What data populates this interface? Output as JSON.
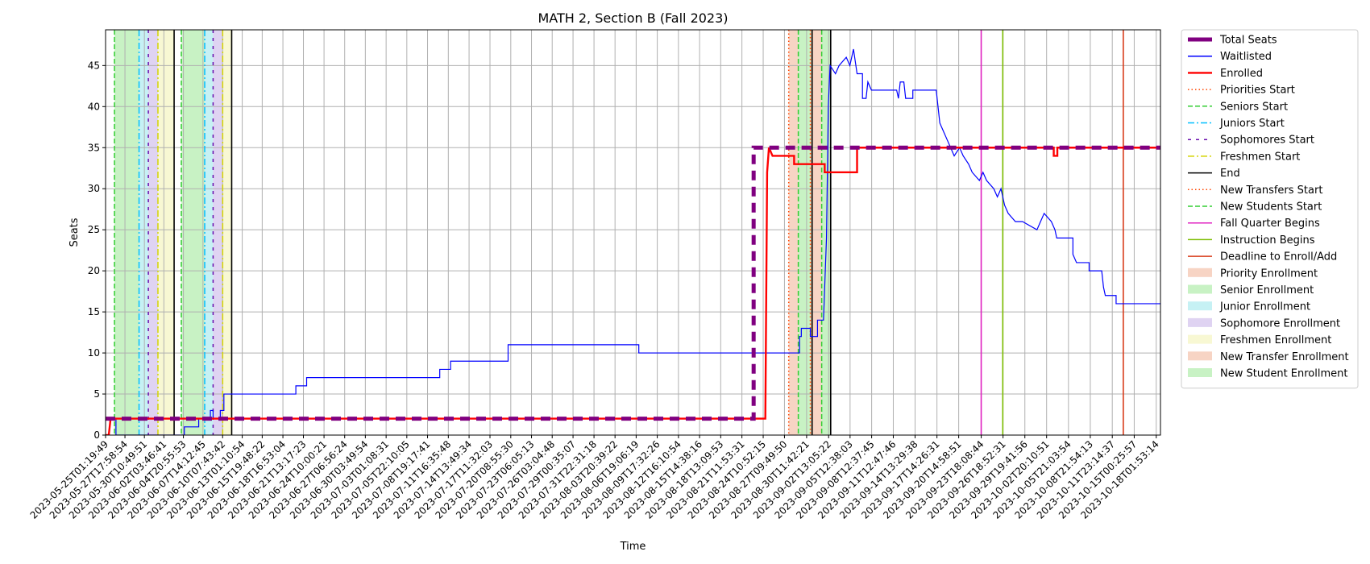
{
  "chart_data": {
    "type": "line",
    "title": "MATH 2, Section B (Fall 2023)",
    "xlabel": "Time",
    "ylabel": "Seats",
    "ylim": [
      0,
      49.35
    ],
    "yticks": [
      0,
      5,
      10,
      15,
      20,
      25,
      30,
      35,
      40,
      45
    ],
    "xlim": [
      "2023-05-25T01:19:49",
      "2023-10-18T16:00:00"
    ],
    "x_tick_labels": [
      "2023-05-25T01:19:49",
      "2023-05-27T17:58:54",
      "2023-05-30T10:49:51",
      "2023-06-02T03:46:41",
      "2023-06-04T20:55:53",
      "2023-06-07T14:12:45",
      "2023-06-10T07:43:42",
      "2023-06-13T01:10:54",
      "2023-06-15T19:48:22",
      "2023-06-18T16:53:04",
      "2023-06-21T13:17:23",
      "2023-06-24T10:00:21",
      "2023-06-27T06:56:24",
      "2023-06-30T03:49:54",
      "2023-07-03T01:08:31",
      "2023-07-05T22:10:05",
      "2023-07-08T19:17:41",
      "2023-07-11T16:35:48",
      "2023-07-14T13:49:34",
      "2023-07-17T11:32:03",
      "2023-07-20T08:55:30",
      "2023-07-23T06:05:13",
      "2023-07-26T03:04:48",
      "2023-07-29T00:35:07",
      "2023-07-31T22:31:18",
      "2023-08-03T20:39:22",
      "2023-08-06T19:06:19",
      "2023-08-09T17:32:26",
      "2023-08-12T16:10:54",
      "2023-08-15T14:38:16",
      "2023-08-18T13:09:53",
      "2023-08-21T11:53:31",
      "2023-08-24T10:52:15",
      "2023-08-27T09:49:50",
      "2023-08-30T11:42:21",
      "2023-09-02T13:05:22",
      "2023-09-05T12:38:03",
      "2023-09-08T12:37:45",
      "2023-09-11T12:47:46",
      "2023-09-14T13:29:38",
      "2023-09-17T14:26:31",
      "2023-09-20T14:58:51",
      "2023-09-23T18:08:44",
      "2023-09-26T18:52:31",
      "2023-09-29T19:41:56",
      "2023-10-02T20:10:51",
      "2023-10-05T21:03:54",
      "2023-10-08T21:54:13",
      "2023-10-11T23:14:37",
      "2023-10-15T00:25:57",
      "2023-10-18T01:53:14"
    ],
    "grid": true,
    "legend_placement": "outside-upper-right",
    "series": [
      {
        "name": "Total Seats",
        "color": "#800080",
        "style": "dashed-thick",
        "points": [
          [
            "2023-05-25T01:19:49",
            2
          ],
          [
            "2023-08-23T03:00:00",
            2
          ],
          [
            "2023-08-23T03:00:00",
            35
          ],
          [
            "2023-10-18T16:00:00",
            35
          ]
        ]
      },
      {
        "name": "Waitlisted",
        "color": "#0000ff",
        "style": "solid",
        "points": [
          [
            "2023-05-25T01:19:49",
            2
          ],
          [
            "2023-05-26T12:00:00",
            2
          ],
          [
            "2023-05-26T12:00:00",
            0
          ],
          [
            "2023-06-05T00:00:00",
            0
          ],
          [
            "2023-06-05T00:00:00",
            1
          ],
          [
            "2023-06-07T00:00:00",
            1
          ],
          [
            "2023-06-07T00:00:00",
            2
          ],
          [
            "2023-06-08T15:00:00",
            2
          ],
          [
            "2023-06-08T15:00:00",
            3
          ],
          [
            "2023-06-09T00:00:00",
            3
          ],
          [
            "2023-06-09T00:00:00",
            2
          ],
          [
            "2023-06-10T00:00:00",
            2
          ],
          [
            "2023-06-10T00:00:00",
            3
          ],
          [
            "2023-06-10T12:00:00",
            3
          ],
          [
            "2023-06-10T12:00:00",
            5
          ],
          [
            "2023-06-20T12:00:00",
            5
          ],
          [
            "2023-06-20T12:00:00",
            6
          ],
          [
            "2023-06-22T00:00:00",
            6
          ],
          [
            "2023-06-22T00:00:00",
            7
          ],
          [
            "2023-07-10T12:00:00",
            7
          ],
          [
            "2023-07-10T12:00:00",
            8
          ],
          [
            "2023-07-12T00:00:00",
            8
          ],
          [
            "2023-07-12T00:00:00",
            9
          ],
          [
            "2023-07-20T00:00:00",
            9
          ],
          [
            "2023-07-20T00:00:00",
            11
          ],
          [
            "2023-08-07T04:00:00",
            11
          ],
          [
            "2023-08-07T04:00:00",
            10
          ],
          [
            "2023-08-29T12:00:00",
            10
          ],
          [
            "2023-08-29T12:00:00",
            12
          ],
          [
            "2023-08-29T18:00:00",
            12
          ],
          [
            "2023-08-29T18:00:00",
            13
          ],
          [
            "2023-08-31T00:00:00",
            13
          ],
          [
            "2023-08-31T00:00:00",
            12
          ],
          [
            "2023-09-01T00:00:00",
            12
          ],
          [
            "2023-09-01T00:00:00",
            14
          ],
          [
            "2023-09-01T20:00:00",
            14
          ],
          [
            "2023-09-02T06:00:00",
            24
          ],
          [
            "2023-09-02T12:00:00",
            40
          ],
          [
            "2023-09-02T18:00:00",
            45
          ],
          [
            "2023-09-03T12:00:00",
            44
          ],
          [
            "2023-09-04T00:00:00",
            45
          ],
          [
            "2023-09-05T00:00:00",
            46
          ],
          [
            "2023-09-05T12:00:00",
            45
          ],
          [
            "2023-09-06T00:00:00",
            47
          ],
          [
            "2023-09-06T12:00:00",
            44
          ],
          [
            "2023-09-07T06:00:00",
            44
          ],
          [
            "2023-09-07T06:00:00",
            41
          ],
          [
            "2023-09-07T18:00:00",
            41
          ],
          [
            "2023-09-08T00:00:00",
            43
          ],
          [
            "2023-09-08T12:00:00",
            42
          ],
          [
            "2023-09-12T00:00:00",
            42
          ],
          [
            "2023-09-12T06:00:00",
            41
          ],
          [
            "2023-09-12T12:00:00",
            43
          ],
          [
            "2023-09-13T00:00:00",
            43
          ],
          [
            "2023-09-13T06:00:00",
            41
          ],
          [
            "2023-09-14T06:00:00",
            41
          ],
          [
            "2023-09-14T06:00:00",
            42
          ],
          [
            "2023-09-17T12:00:00",
            42
          ],
          [
            "2023-09-18T00:00:00",
            38
          ],
          [
            "2023-09-18T12:00:00",
            37
          ],
          [
            "2023-09-19T00:00:00",
            36
          ],
          [
            "2023-09-19T12:00:00",
            35
          ],
          [
            "2023-09-20T00:00:00",
            34
          ],
          [
            "2023-09-20T18:00:00",
            35
          ],
          [
            "2023-09-21T06:00:00",
            34
          ],
          [
            "2023-09-22T00:00:00",
            33
          ],
          [
            "2023-09-22T12:00:00",
            32
          ],
          [
            "2023-09-23T12:00:00",
            31
          ],
          [
            "2023-09-24T00:00:00",
            32
          ],
          [
            "2023-09-24T12:00:00",
            31
          ],
          [
            "2023-09-25T12:00:00",
            30
          ],
          [
            "2023-09-26T00:00:00",
            29
          ],
          [
            "2023-09-26T12:00:00",
            30
          ],
          [
            "2023-09-27T00:00:00",
            28
          ],
          [
            "2023-09-27T12:00:00",
            27
          ],
          [
            "2023-09-28T12:00:00",
            26
          ],
          [
            "2023-09-29T12:00:00",
            26
          ],
          [
            "2023-10-01T12:00:00",
            25
          ],
          [
            "2023-10-02T00:00:00",
            26
          ],
          [
            "2023-10-02T12:00:00",
            27
          ],
          [
            "2023-10-03T12:00:00",
            26
          ],
          [
            "2023-10-04T00:00:00",
            25
          ],
          [
            "2023-10-04T06:00:00",
            24
          ],
          [
            "2023-10-06T12:00:00",
            24
          ],
          [
            "2023-10-06T12:00:00",
            22
          ],
          [
            "2023-10-07T00:00:00",
            21
          ],
          [
            "2023-10-08T18:00:00",
            21
          ],
          [
            "2023-10-08T18:00:00",
            20
          ],
          [
            "2023-10-10T12:00:00",
            20
          ],
          [
            "2023-10-10T18:00:00",
            18
          ],
          [
            "2023-10-11T00:00:00",
            17
          ],
          [
            "2023-10-12T12:00:00",
            17
          ],
          [
            "2023-10-12T12:00:00",
            16
          ],
          [
            "2023-10-18T16:00:00",
            16
          ]
        ]
      },
      {
        "name": "Enrolled",
        "color": "#ff0000",
        "style": "solid-thick",
        "points": [
          [
            "2023-05-25T01:19:49",
            0
          ],
          [
            "2023-05-25T12:00:00",
            0
          ],
          [
            "2023-05-25T18:00:00",
            2
          ],
          [
            "2023-08-24T18:00:00",
            2
          ],
          [
            "2023-08-25T00:00:00",
            32
          ],
          [
            "2023-08-25T06:00:00",
            35
          ],
          [
            "2023-08-25T18:00:00",
            34
          ],
          [
            "2023-08-28T18:00:00",
            34
          ],
          [
            "2023-08-28T18:00:00",
            33
          ],
          [
            "2023-09-02T00:00:00",
            33
          ],
          [
            "2023-09-02T00:00:00",
            32
          ],
          [
            "2023-09-06T12:00:00",
            32
          ],
          [
            "2023-09-06T12:00:00",
            35
          ],
          [
            "2023-10-03T20:00:00",
            35
          ],
          [
            "2023-10-03T20:00:00",
            34
          ],
          [
            "2023-10-04T08:00:00",
            34
          ],
          [
            "2023-10-04T08:00:00",
            35
          ],
          [
            "2023-10-18T16:00:00",
            35
          ]
        ]
      }
    ],
    "vertical_lines": [
      {
        "legend": "Priorities Start",
        "color": "#ff4500",
        "style": "dotted",
        "x": [
          "2023-08-28T00:00:00"
        ]
      },
      {
        "legend": "Seniors Start",
        "color": "#32cd32",
        "style": "dashed",
        "x": [
          "2023-05-26T07:00:00",
          "2023-06-04T14:00:00",
          "2023-08-29T08:00:00",
          "2023-09-01T14:00:00"
        ]
      },
      {
        "legend": "Juniors Start",
        "color": "#00bfff",
        "style": "dashdot",
        "x": [
          "2023-05-29T17:00:00",
          "2023-06-07T20:00:00"
        ]
      },
      {
        "legend": "Sophomores Start",
        "color": "#6a0dad",
        "style": "loosedash",
        "x": [
          "2023-05-31T00:00:00",
          "2023-06-09T00:00:00"
        ]
      },
      {
        "legend": "Freshmen Start",
        "color": "#d4d400",
        "style": "dashdot",
        "x": [
          "2023-06-01T08:00:00",
          "2023-06-10T08:00:00"
        ]
      },
      {
        "legend": "End",
        "color": "#000000",
        "style": "solid",
        "x": [
          "2023-06-03T14:00:00",
          "2023-06-11T14:00:00",
          "2023-08-31T06:00:00",
          "2023-09-02T20:00:00"
        ]
      },
      {
        "legend": "New Transfers Start",
        "color": "#ff4500",
        "style": "dotted",
        "x": [
          "2023-08-31T00:00:00"
        ]
      },
      {
        "legend": "New Students Start",
        "color": "#32cd32",
        "style": "dashed",
        "x": []
      },
      {
        "legend": "Fall Quarter Begins",
        "color": "#e020c0",
        "style": "solid",
        "x": [
          "2023-09-23T18:00:00"
        ]
      },
      {
        "legend": "Instruction Begins",
        "color": "#7cbd00",
        "style": "solid",
        "x": [
          "2023-09-26T18:00:00"
        ]
      },
      {
        "legend": "Deadline to Enroll/Add",
        "color": "#d83b1a",
        "style": "solid",
        "x": [
          "2023-10-13T12:00:00"
        ]
      }
    ],
    "shaded_regions": [
      {
        "legend": "Priority Enrollment",
        "color": "#f4c6b0",
        "spans": [
          [
            "2023-08-28T00:00:00",
            "2023-08-29T08:00:00"
          ]
        ]
      },
      {
        "legend": "Senior Enrollment",
        "color": "#b6eeb0",
        "spans": [
          [
            "2023-05-26T07:00:00",
            "2023-05-29T17:00:00"
          ],
          [
            "2023-06-04T14:00:00",
            "2023-06-07T20:00:00"
          ],
          [
            "2023-08-29T08:00:00",
            "2023-08-31T06:00:00"
          ]
        ]
      },
      {
        "legend": "Junior Enrollment",
        "color": "#b3ecf0",
        "spans": [
          [
            "2023-05-29T17:00:00",
            "2023-05-31T00:00:00"
          ],
          [
            "2023-06-07T20:00:00",
            "2023-06-09T00:00:00"
          ]
        ]
      },
      {
        "legend": "Sophomore Enrollment",
        "color": "#d4c4ee",
        "spans": [
          [
            "2023-05-31T00:00:00",
            "2023-06-01T08:00:00"
          ],
          [
            "2023-06-09T00:00:00",
            "2023-06-10T08:00:00"
          ]
        ]
      },
      {
        "legend": "Freshmen Enrollment",
        "color": "#f6f6c4",
        "spans": [
          [
            "2023-06-01T08:00:00",
            "2023-06-03T14:00:00"
          ],
          [
            "2023-06-10T08:00:00",
            "2023-06-11T14:00:00"
          ]
        ]
      },
      {
        "legend": "New Transfer Enrollment",
        "color": "#f4c6b0",
        "spans": [
          [
            "2023-08-31T00:00:00",
            "2023-09-01T14:00:00"
          ]
        ]
      },
      {
        "legend": "New Student Enrollment",
        "color": "#b6eeb0",
        "spans": [
          [
            "2023-09-01T14:00:00",
            "2023-09-02T20:00:00"
          ]
        ]
      }
    ]
  }
}
